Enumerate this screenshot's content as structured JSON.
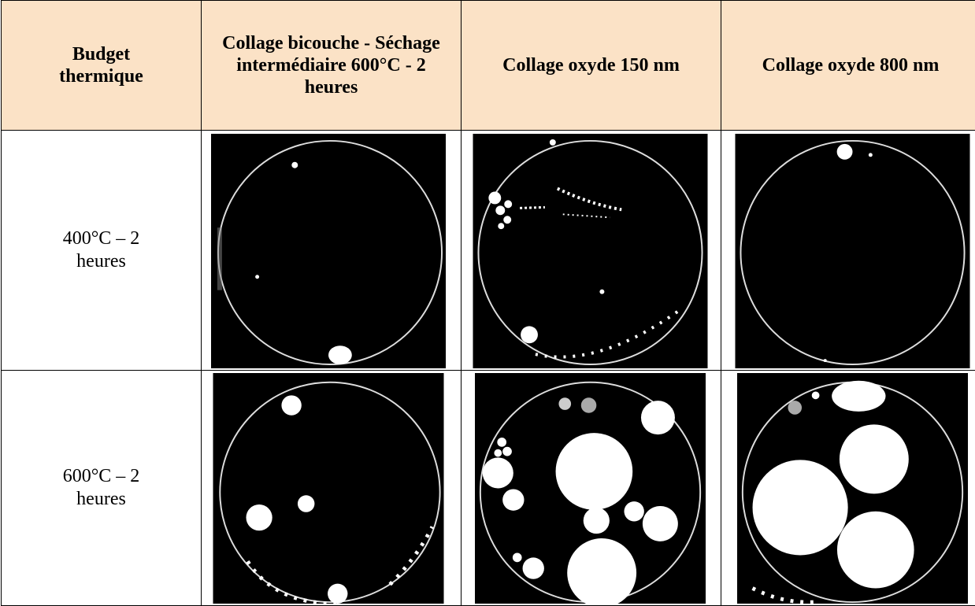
{
  "table": {
    "header": [
      "Budget thermique",
      "Collage bicouche - Séchage intermédiaire 600°C - 2 heures",
      "Collage oxyde 150 nm",
      "Collage oxyde 800 nm"
    ],
    "rows": [
      [
        "400°C – 2 heures"
      ],
      [
        "600°C – 2 heures"
      ]
    ]
  }
}
